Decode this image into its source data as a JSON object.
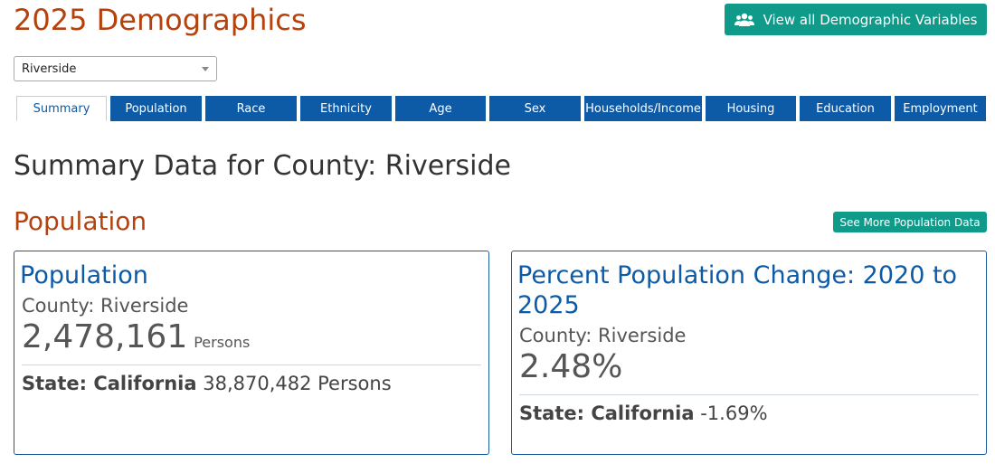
{
  "header": {
    "title": "2025 Demographics",
    "view_all_label": "View all Demographic Variables",
    "view_all_icon": "users-icon"
  },
  "county_select": {
    "value": "Riverside"
  },
  "tabs": [
    {
      "label": "Summary",
      "active": true
    },
    {
      "label": "Population",
      "active": false
    },
    {
      "label": "Race",
      "active": false
    },
    {
      "label": "Ethnicity",
      "active": false
    },
    {
      "label": "Age",
      "active": false
    },
    {
      "label": "Sex",
      "active": false
    },
    {
      "label": "Households/Income",
      "active": false
    },
    {
      "label": "Housing",
      "active": false
    },
    {
      "label": "Education",
      "active": false
    },
    {
      "label": "Employment",
      "active": false
    }
  ],
  "summary_title": "Summary Data for County: Riverside",
  "population_section": {
    "title": "Population",
    "see_more_label": "See More Population Data",
    "cards": [
      {
        "title": "Population",
        "county_label": "County: Riverside",
        "value": "2,478,161",
        "unit": "Persons",
        "state_label": "State: California",
        "state_value": "38,870,482 Persons"
      },
      {
        "title": "Percent Population Change: 2020 to 2025",
        "county_label": "County: Riverside",
        "value": "2.48%",
        "unit": "",
        "state_label": "State: California",
        "state_value": "-1.69%"
      }
    ]
  },
  "colors": {
    "accent_orange": "#b5420e",
    "teal": "#0f9a8a",
    "tab_blue": "#0d5aa7"
  }
}
